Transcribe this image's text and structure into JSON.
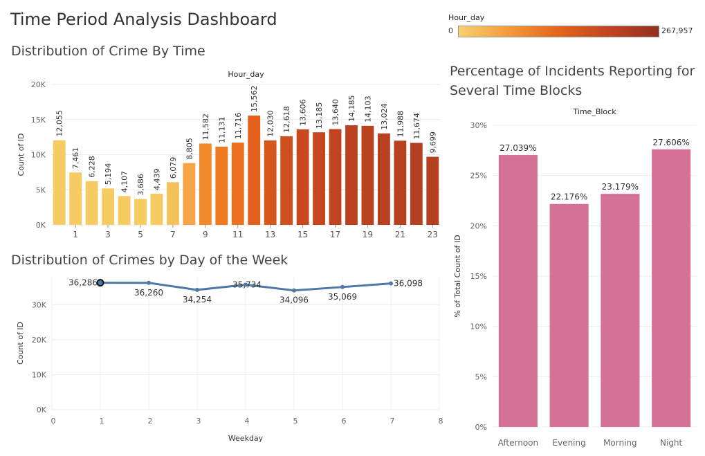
{
  "dashboard": {
    "title": "Time Period Analysis Dashboard"
  },
  "legend": {
    "title": "Hour_day",
    "min_label": "0",
    "max_label": "267,957",
    "colors": [
      "#f7d26f",
      "#f59a3a",
      "#e5641e",
      "#c24420",
      "#923022"
    ]
  },
  "chart_data": [
    {
      "id": "hourly",
      "type": "bar",
      "title": "Distribution of Crime By Time",
      "header": "Hour_day",
      "ylabel": "Count of ID",
      "ylim": [
        0,
        20000
      ],
      "yticks": [
        0,
        5000,
        10000,
        15000,
        20000
      ],
      "ytick_labels": [
        "0K",
        "5K",
        "10K",
        "15K",
        "20K"
      ],
      "x": [
        0,
        1,
        2,
        3,
        4,
        5,
        6,
        7,
        8,
        9,
        10,
        11,
        12,
        13,
        14,
        15,
        16,
        17,
        18,
        19,
        20,
        21,
        22,
        23
      ],
      "xtick_labels": [
        "1",
        "3",
        "5",
        "7",
        "9",
        "11",
        "13",
        "15",
        "17",
        "19",
        "21",
        "23"
      ],
      "values": [
        12055,
        7461,
        6228,
        5194,
        4107,
        3686,
        4439,
        6079,
        8805,
        11582,
        11131,
        11716,
        15562,
        12030,
        12618,
        13606,
        13185,
        13640,
        14185,
        14103,
        13024,
        11988,
        11674,
        9699
      ],
      "value_labels": [
        "12,055",
        "7,461",
        "6,228",
        "5,194",
        "4,107",
        "3,686",
        "4,439",
        "6,079",
        "8,805",
        "11,582",
        "11,131",
        "11,716",
        "15,562",
        "12,030",
        "12,618",
        "13,606",
        "13,185",
        "13,640",
        "14,185",
        "14,103",
        "13,024",
        "11,988",
        "11,674",
        "9,699"
      ],
      "colors": [
        "#f5cb62",
        "#f5cb62",
        "#f5cb62",
        "#f5cb62",
        "#f5cb62",
        "#f5cb62",
        "#f5cb62",
        "#f5c25a",
        "#f5a545",
        "#f28a2c",
        "#ef7a22",
        "#ed721f",
        "#e4611d",
        "#d8571d",
        "#cf4f1f",
        "#c84920",
        "#c54720",
        "#c04420",
        "#bb4221",
        "#bb4221",
        "#b84121",
        "#b84121",
        "#b54021",
        "#b54021"
      ],
      "grid": true
    },
    {
      "id": "weekday",
      "type": "line",
      "title": "Distribution of Crimes by Day of the Week",
      "xlabel": "Weekday",
      "ylabel": "Count of ID",
      "xlim": [
        0,
        8
      ],
      "xticks": [
        0,
        1,
        2,
        3,
        4,
        5,
        6,
        7,
        8
      ],
      "ylim": [
        0,
        38000
      ],
      "yticks": [
        0,
        10000,
        20000,
        30000
      ],
      "ytick_labels": [
        "0K",
        "10K",
        "20K",
        "30K"
      ],
      "x": [
        1,
        2,
        3,
        4,
        5,
        6,
        7
      ],
      "values": [
        36286,
        36260,
        34254,
        35734,
        34096,
        35069,
        36098
      ],
      "value_labels": [
        "36,286",
        "36,260",
        "34,254",
        "35,734",
        "34,096",
        "35,069",
        "36,098"
      ],
      "color": "#4e79a7",
      "grid": true
    },
    {
      "id": "timeblock",
      "type": "bar",
      "title": "Percentage of Incidents Reporting for Several Time Blocks",
      "header": "Time_Block",
      "ylabel": "% of Total Count of ID",
      "ylim": [
        0,
        30
      ],
      "yticks": [
        0,
        5,
        10,
        15,
        20,
        25,
        30
      ],
      "ytick_labels": [
        "0%",
        "5%",
        "10%",
        "15%",
        "20%",
        "25%",
        "30%"
      ],
      "categories": [
        "Afternoon",
        "Evening",
        "Morning",
        "Night"
      ],
      "values": [
        27.039,
        22.176,
        23.179,
        27.606
      ],
      "value_labels": [
        "27.039%",
        "22.176%",
        "23.179%",
        "27.606%"
      ],
      "color": "#d37295",
      "grid": true
    }
  ]
}
